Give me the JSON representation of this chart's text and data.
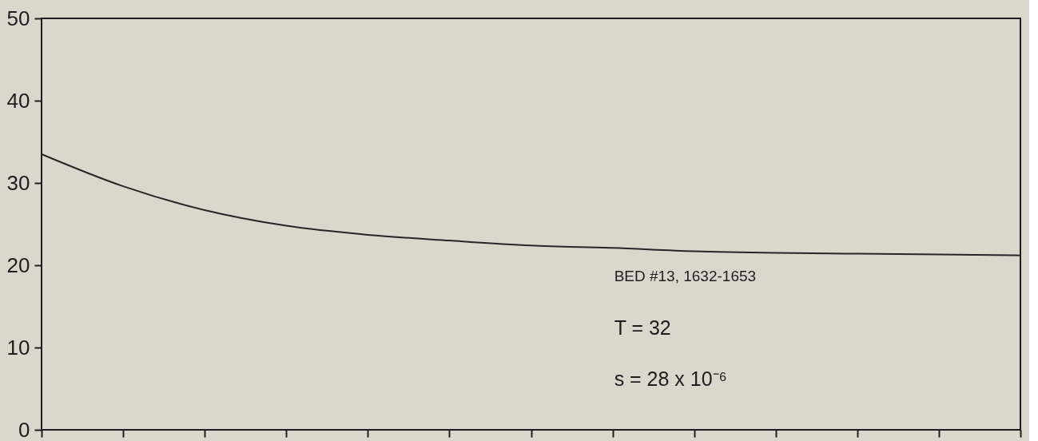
{
  "chart_data": {
    "type": "line",
    "categories": [
      null,
      null,
      null,
      null,
      null,
      null,
      null,
      null,
      null,
      null,
      null,
      null,
      null
    ],
    "values": [
      33.5,
      29.6,
      26.7,
      24.8,
      23.7,
      23.0,
      22.4,
      22.1,
      21.7,
      21.5,
      21.4,
      21.3,
      21.2
    ],
    "color": "#262626",
    "ylim": [
      0,
      50
    ],
    "yticks": [
      0,
      10,
      20,
      30,
      40,
      50
    ],
    "tick_labels": "y",
    "annotations": [
      "BED #13, 1632-1653",
      "T = 32",
      "s = 28 x 10⁻⁶"
    ]
  }
}
